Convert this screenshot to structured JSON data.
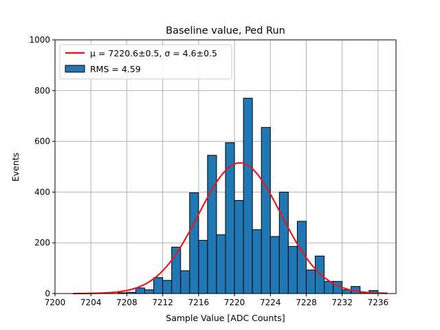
{
  "chart_data": {
    "type": "bar",
    "title": "Baseline value, Ped Run",
    "xlabel": "Sample Value [ADC Counts]",
    "ylabel": "Events",
    "xlim": [
      7200,
      7238
    ],
    "ylim": [
      0,
      1000
    ],
    "xticks": [
      7200,
      7204,
      7208,
      7212,
      7216,
      7220,
      7224,
      7228,
      7232,
      7236
    ],
    "yticks": [
      0,
      200,
      400,
      600,
      800,
      1000
    ],
    "grid": true,
    "legend_position": "top-left",
    "bar_color": "#1f77b4",
    "bar_edge_color": "#000000",
    "fit_color": "#e41a1c",
    "series": [
      {
        "name": "RMS = 4.59",
        "bin_edges": [
          7207,
          7208,
          7209,
          7210,
          7211,
          7212,
          7213,
          7214,
          7215,
          7216,
          7217,
          7218,
          7219,
          7220,
          7221,
          7222,
          7223,
          7224,
          7225,
          7226,
          7227,
          7228,
          7229,
          7230,
          7231,
          7232,
          7233,
          7234,
          7235,
          7236,
          7237
        ],
        "values": [
          3,
          5,
          22,
          15,
          63,
          52,
          183,
          90,
          397,
          210,
          545,
          232,
          595,
          367,
          770,
          252,
          655,
          225,
          400,
          186,
          285,
          93,
          148,
          48,
          48,
          15,
          28,
          5,
          12,
          3
        ]
      }
    ],
    "fit": {
      "name": "μ = 7220.6±0.5, σ = 4.6±0.5",
      "mu": 7220.6,
      "sigma": 4.6,
      "amplitude": 515,
      "x_range": [
        7202,
        7237
      ]
    }
  }
}
